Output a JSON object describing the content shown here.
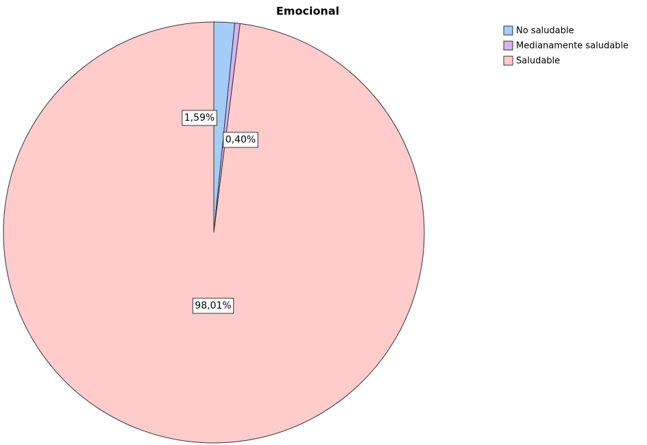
{
  "chart_data": {
    "type": "pie",
    "title": "Emocional",
    "categories": [
      "No saludable",
      "Medianamente saludable",
      "Saludable"
    ],
    "values": [
      1.59,
      0.4,
      98.01
    ],
    "value_labels": [
      "1,59%",
      "0,40%",
      "98,01%"
    ],
    "colors": [
      "#a3cdf7",
      "#d6b2ee",
      "#ffcbcb"
    ],
    "legend": "top-right"
  }
}
